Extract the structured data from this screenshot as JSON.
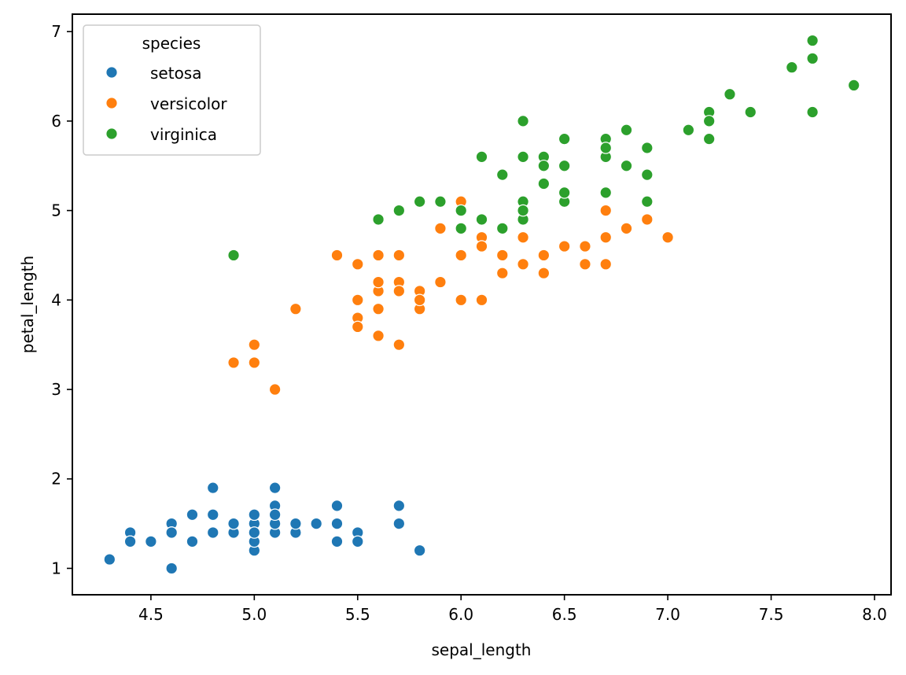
{
  "chart_data": {
    "type": "scatter",
    "title": "",
    "xlabel": "sepal_length",
    "ylabel": "petal_length",
    "xlim": [
      4.12,
      8.08
    ],
    "ylim": [
      0.705,
      7.195
    ],
    "xticks": [
      4.5,
      5.0,
      5.5,
      6.0,
      6.5,
      7.0,
      7.5,
      8.0
    ],
    "xtick_labels": [
      "4.5",
      "5.0",
      "5.5",
      "6.0",
      "6.5",
      "7.0",
      "7.5",
      "8.0"
    ],
    "yticks": [
      1,
      2,
      3,
      4,
      5,
      6,
      7
    ],
    "ytick_labels": [
      "1",
      "2",
      "3",
      "4",
      "5",
      "6",
      "7"
    ],
    "grid": false,
    "legend": {
      "title": "species",
      "placement": "top-left",
      "entries": [
        "setosa",
        "versicolor",
        "virginica"
      ]
    },
    "series": [
      {
        "name": "setosa",
        "color": "#1f77b4",
        "x": [
          5.1,
          4.9,
          4.7,
          4.6,
          5.0,
          5.4,
          4.6,
          5.0,
          4.4,
          4.9,
          5.4,
          4.8,
          4.8,
          4.3,
          5.8,
          5.7,
          5.4,
          5.1,
          5.7,
          5.1,
          5.4,
          5.1,
          4.6,
          5.1,
          4.8,
          5.0,
          5.0,
          5.2,
          5.2,
          4.7,
          4.8,
          5.4,
          5.2,
          5.5,
          4.9,
          5.0,
          5.5,
          4.9,
          4.4,
          5.1,
          5.0,
          4.5,
          4.4,
          5.0,
          5.1,
          4.8,
          5.1,
          4.6,
          5.3,
          5.0
        ],
        "y": [
          1.4,
          1.4,
          1.3,
          1.5,
          1.4,
          1.7,
          1.4,
          1.5,
          1.4,
          1.5,
          1.5,
          1.6,
          1.4,
          1.1,
          1.2,
          1.5,
          1.3,
          1.4,
          1.7,
          1.5,
          1.7,
          1.5,
          1.0,
          1.7,
          1.9,
          1.6,
          1.6,
          1.5,
          1.4,
          1.6,
          1.6,
          1.5,
          1.5,
          1.4,
          1.5,
          1.2,
          1.3,
          1.5,
          1.3,
          1.5,
          1.3,
          1.3,
          1.3,
          1.6,
          1.9,
          1.4,
          1.6,
          1.4,
          1.5,
          1.4
        ]
      },
      {
        "name": "versicolor",
        "color": "#ff7f0e",
        "x": [
          7.0,
          6.4,
          6.9,
          5.5,
          6.5,
          5.7,
          6.3,
          4.9,
          6.6,
          5.2,
          5.0,
          5.9,
          6.0,
          6.1,
          5.6,
          6.7,
          5.6,
          5.8,
          6.2,
          5.6,
          5.9,
          6.1,
          6.3,
          6.1,
          6.4,
          6.6,
          6.8,
          6.7,
          6.0,
          5.7,
          5.5,
          5.5,
          5.8,
          6.0,
          5.4,
          6.0,
          6.7,
          6.3,
          5.6,
          5.5,
          5.5,
          6.1,
          5.8,
          5.0,
          5.6,
          5.7,
          5.7,
          6.2,
          5.1,
          5.7
        ],
        "y": [
          4.7,
          4.5,
          4.9,
          4.0,
          4.6,
          4.5,
          4.7,
          3.3,
          4.6,
          3.9,
          3.5,
          4.2,
          4.0,
          4.7,
          3.6,
          4.4,
          4.5,
          4.1,
          4.5,
          3.9,
          4.8,
          4.0,
          4.9,
          4.7,
          4.3,
          4.4,
          4.8,
          5.0,
          4.5,
          3.5,
          3.8,
          3.7,
          3.9,
          5.1,
          4.5,
          4.5,
          4.7,
          4.4,
          4.1,
          4.0,
          4.4,
          4.6,
          4.0,
          3.3,
          4.2,
          4.2,
          4.2,
          4.3,
          3.0,
          4.1
        ]
      },
      {
        "name": "virginica",
        "color": "#2ca02c",
        "x": [
          6.3,
          5.8,
          7.1,
          6.3,
          6.5,
          7.6,
          4.9,
          7.3,
          6.7,
          7.2,
          6.5,
          6.4,
          6.8,
          5.7,
          5.8,
          6.4,
          6.5,
          7.7,
          7.7,
          6.0,
          6.9,
          5.6,
          7.7,
          6.3,
          6.7,
          7.2,
          6.2,
          6.1,
          6.4,
          7.2,
          7.4,
          7.9,
          6.4,
          6.3,
          6.1,
          7.7,
          6.3,
          6.4,
          6.0,
          6.9,
          6.7,
          6.9,
          5.8,
          6.8,
          6.7,
          6.7,
          6.3,
          6.5,
          6.2,
          5.9
        ],
        "y": [
          6.0,
          5.1,
          5.9,
          5.6,
          5.8,
          6.6,
          4.5,
          6.3,
          5.8,
          6.1,
          5.1,
          5.3,
          5.5,
          5.0,
          5.1,
          5.3,
          5.5,
          6.7,
          6.9,
          5.0,
          5.7,
          4.9,
          6.7,
          4.9,
          5.7,
          6.0,
          4.8,
          4.9,
          5.6,
          5.8,
          6.1,
          6.4,
          5.6,
          5.1,
          5.6,
          6.1,
          5.6,
          5.5,
          4.8,
          5.4,
          5.6,
          5.1,
          5.1,
          5.9,
          5.7,
          5.2,
          5.0,
          5.2,
          5.4,
          5.1
        ]
      }
    ]
  }
}
